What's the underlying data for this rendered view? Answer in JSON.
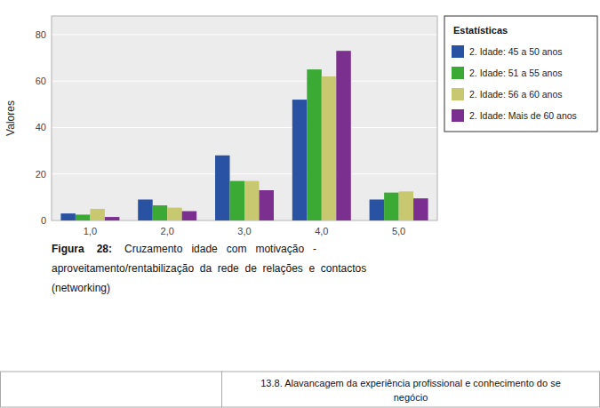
{
  "chart_data": {
    "type": "bar",
    "categories": [
      "1,0",
      "2,0",
      "3,0",
      "4,0",
      "5,0"
    ],
    "series": [
      {
        "name": "2. Idade: 45 a 50 anos",
        "color": "#2952a3",
        "values": [
          3,
          9,
          28,
          52,
          9
        ]
      },
      {
        "name": "2. Idade: 51 a 55 anos",
        "color": "#3aaa35",
        "values": [
          2.5,
          6.5,
          17,
          65,
          12
        ]
      },
      {
        "name": "2. Idade: 56 a 60 anos",
        "color": "#c8c870",
        "values": [
          5,
          5.5,
          17,
          62,
          12.5
        ]
      },
      {
        "name": "2. Idade: Mais de 60 anos",
        "color": "#7b2f8e",
        "values": [
          1.5,
          4,
          13,
          73,
          9.5
        ]
      }
    ],
    "ylabel": "Valores",
    "ylim": [
      0,
      88
    ],
    "yticks": [
      0,
      20,
      40,
      60,
      80
    ],
    "grid": true,
    "legend": "right",
    "legend_title": "Estatísticas",
    "annotations": [
      "Figura",
      "28:",
      "Cruzamento   idade   com   motivação   -",
      "aproveitamento/rentabilização  da  rede  de  relações  e  contactos",
      "(networking)",
      "13.8. Alavancagem da experiência profissional e conhecimento do se",
      "negócio"
    ]
  }
}
